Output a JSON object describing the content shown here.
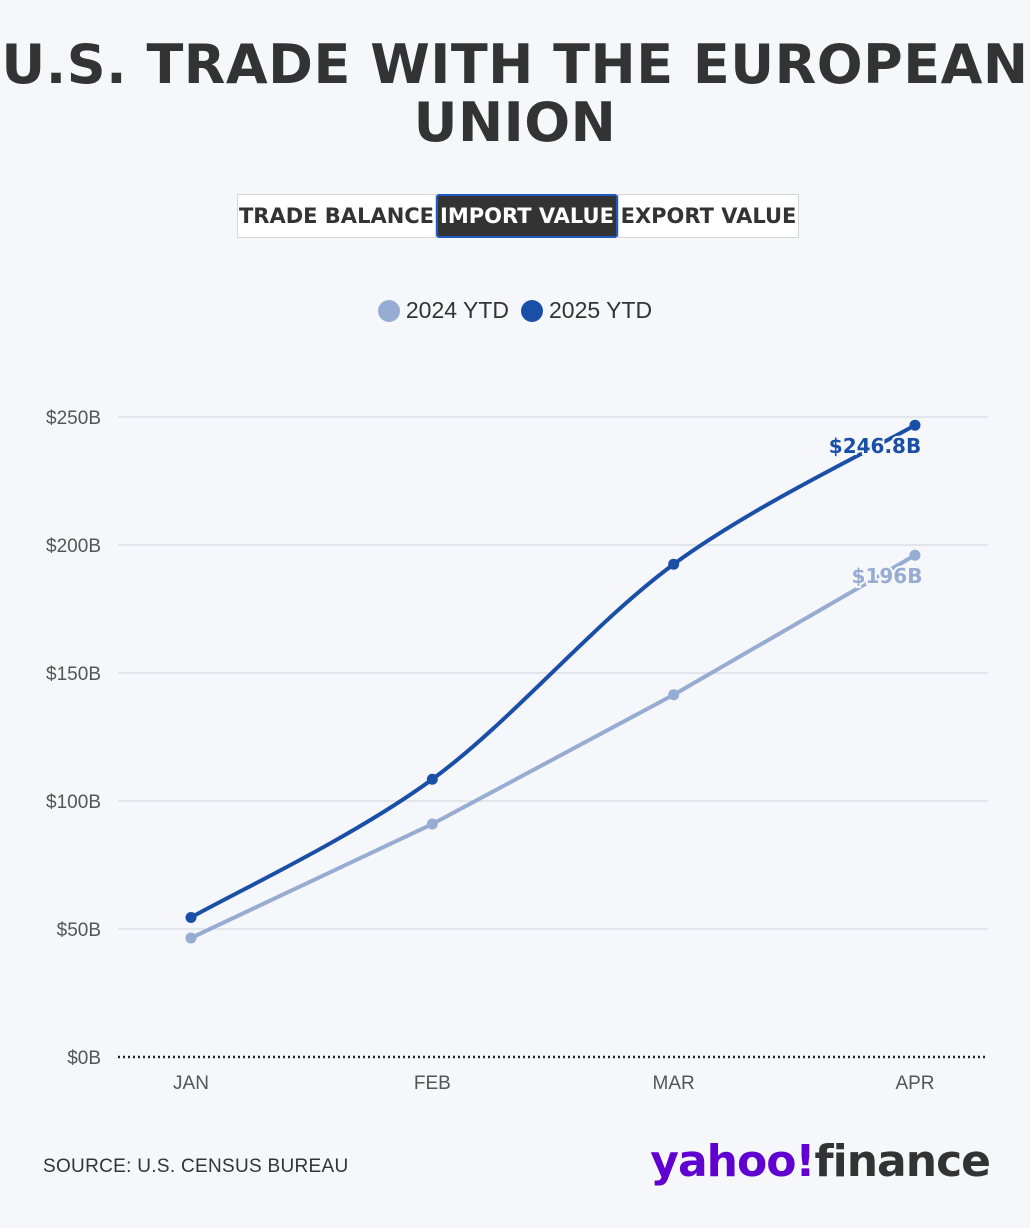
{
  "title": "U.S. TRADE WITH THE EUROPEAN UNION",
  "tabs": [
    {
      "label": "TRADE BALANCE",
      "active": false
    },
    {
      "label": "IMPORT VALUE",
      "active": true
    },
    {
      "label": "EXPORT VALUE",
      "active": false
    }
  ],
  "colors": {
    "series_2024": "#97acd2",
    "series_2025": "#1a4fa8",
    "grid": "#dcdfe4",
    "axis_text": "#555555",
    "logo_accent": "#6001d2"
  },
  "chart_data": {
    "type": "line",
    "categories": [
      "JAN",
      "FEB",
      "MAR",
      "APR"
    ],
    "series": [
      {
        "name": "2024 YTD",
        "values": [
          46.5,
          91,
          141.5,
          196
        ],
        "end_label": "$196B"
      },
      {
        "name": "2025 YTD",
        "values": [
          54.5,
          108.5,
          192.5,
          246.8
        ],
        "end_label": "$246.8B"
      }
    ],
    "y_ticks": [
      {
        "value": 0,
        "label": "$0B"
      },
      {
        "value": 50,
        "label": "$50B"
      },
      {
        "value": 100,
        "label": "$100B"
      },
      {
        "value": 150,
        "label": "$150B"
      },
      {
        "value": 200,
        "label": "$200B"
      },
      {
        "value": 250,
        "label": "$250B"
      }
    ],
    "ylim": [
      0,
      250
    ],
    "grid": true,
    "legend_position": "top-center"
  },
  "footer": {
    "source": "SOURCE: U.S. CENSUS BUREAU",
    "logo_part1": "yahoo!",
    "logo_part2": "finance"
  }
}
